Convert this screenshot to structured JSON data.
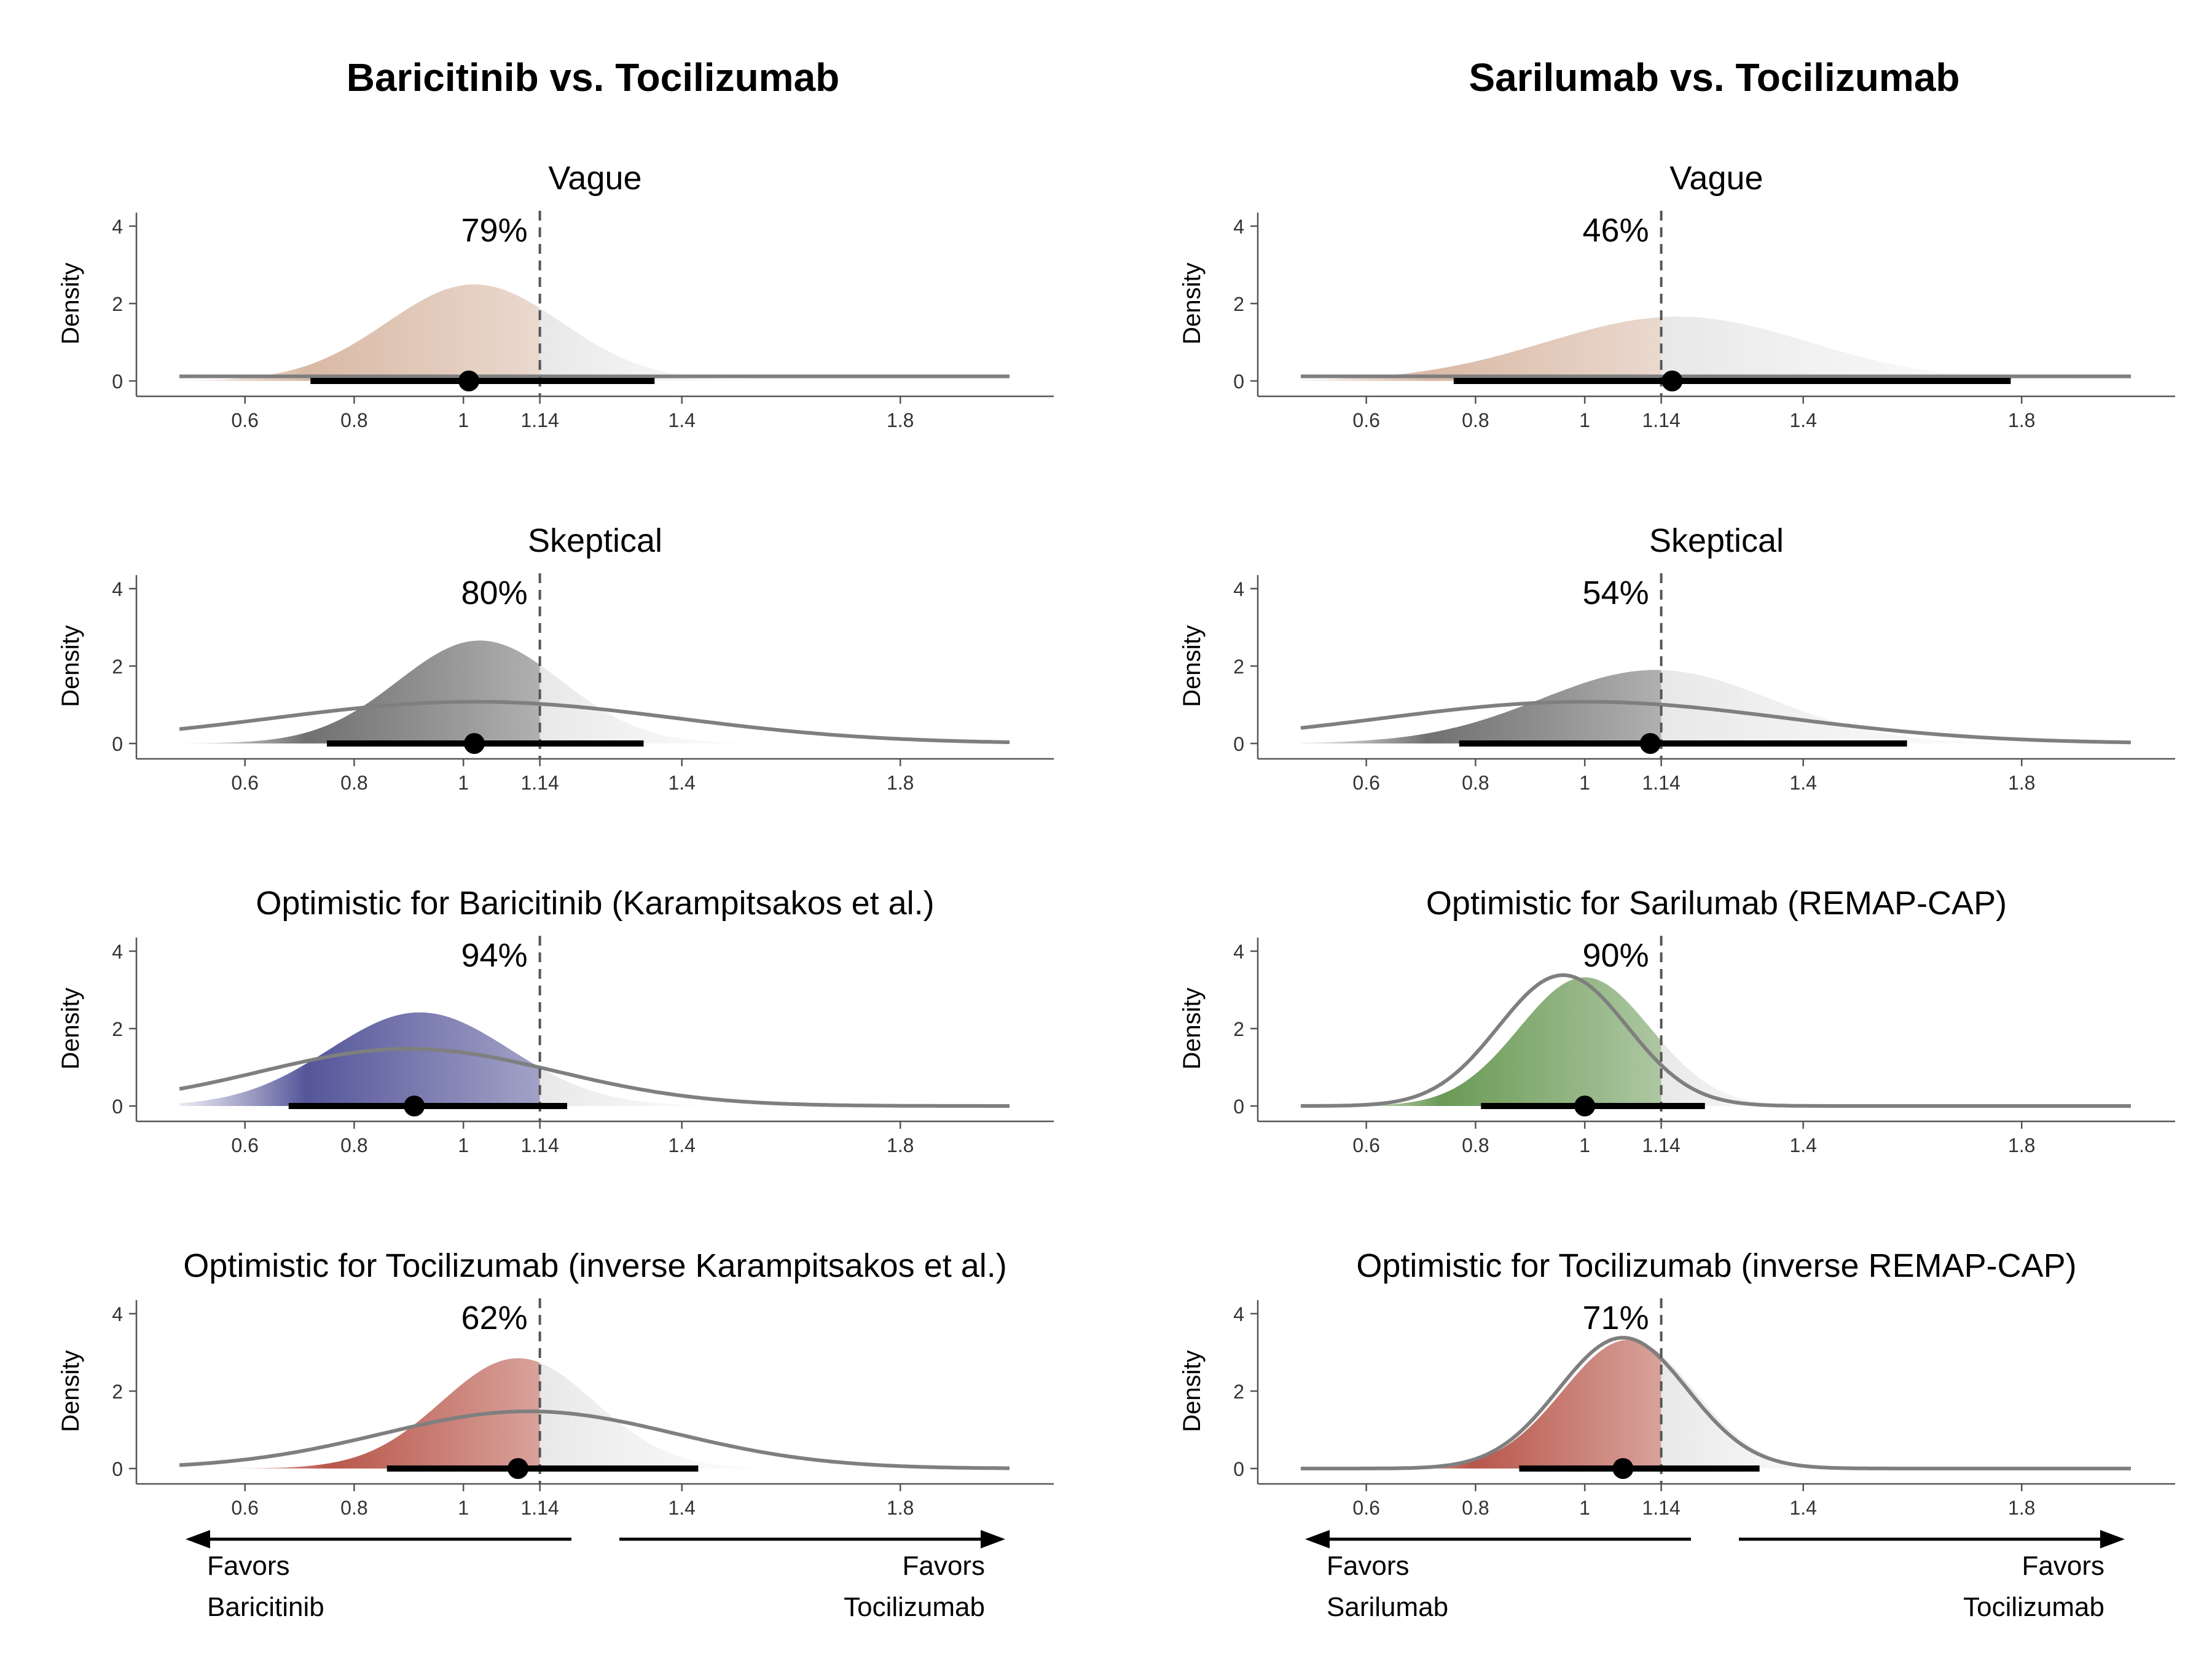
{
  "figure": {
    "x_ticks": [
      0.6,
      0.8,
      1,
      1.14,
      1.4,
      1.8
    ],
    "x_tick_labels": [
      "0.6",
      "0.8",
      "1",
      "1.14",
      "1.4",
      "1.8"
    ],
    "x_range": [
      0.48,
      2.0
    ],
    "y_ticks": [
      0,
      2,
      4
    ],
    "y_tick_labels": [
      "0",
      "2",
      "4"
    ],
    "y_range": [
      -0.35,
      4.5
    ],
    "reference_line": 1.14,
    "ylabel": "Density",
    "shade_color_neutral": "#e8e8e8"
  },
  "chart_data": [
    {
      "type": "area",
      "column_title": "Baricitinib vs. Tocilizumab",
      "panels": [
        {
          "title": "Vague",
          "pct_label": "79%",
          "fill_color": "#d9b9a5",
          "posterior": {
            "mean": 1.02,
            "sd": 0.16
          },
          "prior": {
            "flat": true,
            "level": 0.12
          },
          "point": 1.01,
          "ci": [
            0.72,
            1.35
          ]
        },
        {
          "title": "Skeptical",
          "pct_label": "80%",
          "fill_color": "#707070",
          "posterior": {
            "mean": 1.03,
            "sd": 0.15
          },
          "prior": {
            "mean": 1.02,
            "sd": 0.37
          },
          "point": 1.02,
          "ci": [
            0.75,
            1.33
          ]
        },
        {
          "title": "Optimistic for Baricitinib (Karampitsakos et al.)",
          "pct_label": "94%",
          "fill_color": "#55569a",
          "posterior": {
            "mean": 0.92,
            "sd": 0.165
          },
          "prior": {
            "mean": 0.9,
            "sd": 0.27
          },
          "point": 0.91,
          "ci": [
            0.68,
            1.19
          ]
        },
        {
          "title": "Optimistic for Tocilizumab (inverse Karampitsakos et al.)",
          "pct_label": "62%",
          "fill_color": "#b8564a",
          "posterior": {
            "mean": 1.1,
            "sd": 0.14
          },
          "prior": {
            "mean": 1.12,
            "sd": 0.27
          },
          "point": 1.1,
          "ci": [
            0.86,
            1.43
          ]
        }
      ]
    },
    {
      "type": "area",
      "column_title": "Sarilumab vs. Tocilizumab",
      "panels": [
        {
          "title": "Vague",
          "pct_label": "46%",
          "fill_color": "#d9b9a5",
          "posterior": {
            "mean": 1.17,
            "sd": 0.24
          },
          "prior": {
            "flat": true,
            "level": 0.12
          },
          "point": 1.16,
          "ci": [
            0.76,
            1.78
          ]
        },
        {
          "title": "Skeptical",
          "pct_label": "54%",
          "fill_color": "#707070",
          "posterior": {
            "mean": 1.13,
            "sd": 0.21
          },
          "prior": {
            "mean": 1.0,
            "sd": 0.37
          },
          "point": 1.12,
          "ci": [
            0.77,
            1.59
          ]
        },
        {
          "title": "Optimistic for Sarilumab (REMAP-CAP)",
          "pct_label": "90%",
          "fill_color": "#6a9a55",
          "posterior": {
            "mean": 1.0,
            "sd": 0.12
          },
          "prior": {
            "mean": 0.96,
            "sd": 0.118
          },
          "point": 1.0,
          "ci": [
            0.81,
            1.22
          ]
        },
        {
          "title": "Optimistic for Tocilizumab (inverse REMAP-CAP)",
          "pct_label": "71%",
          "fill_color": "#b8564a",
          "posterior": {
            "mean": 1.08,
            "sd": 0.12
          },
          "prior": {
            "mean": 1.07,
            "sd": 0.118
          },
          "point": 1.07,
          "ci": [
            0.88,
            1.32
          ]
        }
      ]
    }
  ],
  "favors": [
    {
      "left_line1": "Favors",
      "left_line2": "Baricitinib",
      "right_line1": "Favors",
      "right_line2": "Tocilizumab"
    },
    {
      "left_line1": "Favors",
      "left_line2": "Sarilumab",
      "right_line1": "Favors",
      "right_line2": "Tocilizumab"
    }
  ]
}
